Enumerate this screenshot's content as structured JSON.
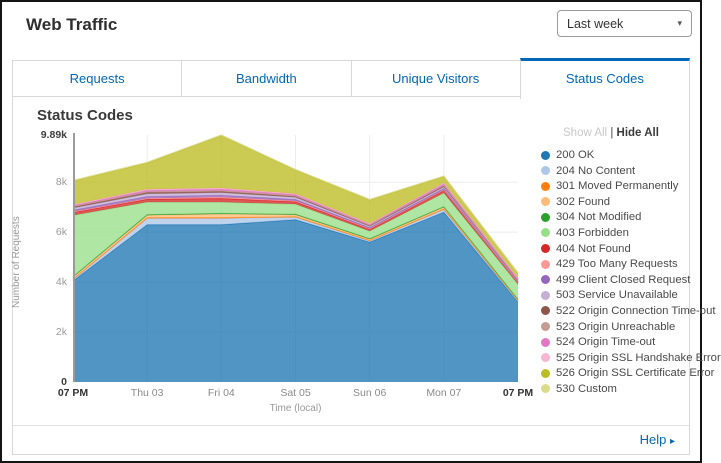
{
  "header": {
    "title": "Web Traffic",
    "period_selector": {
      "value": "Last week",
      "caret": "▾"
    }
  },
  "tabs": [
    {
      "label": "Requests",
      "active": false
    },
    {
      "label": "Bandwidth",
      "active": false
    },
    {
      "label": "Unique Visitors",
      "active": false
    },
    {
      "label": "Status Codes",
      "active": true
    }
  ],
  "panel": {
    "title": "Status Codes"
  },
  "legend_controls": {
    "show_all": "Show All",
    "divider": "|",
    "hide_all": "Hide All"
  },
  "footer": {
    "help_label": "Help",
    "help_arrow": "▸"
  },
  "accent_color": "#0067b5",
  "chart_data": {
    "type": "area",
    "stacked": true,
    "title": "Status Codes",
    "xlabel": "Time (local)",
    "ylabel": "Number of Requests",
    "ylim": [
      0,
      9890
    ],
    "grid": true,
    "legend_position": "right",
    "x": [
      "07 PM",
      "Thu 03",
      "Fri 04",
      "Sat 05",
      "Sun 06",
      "Mon 07",
      "07 PM"
    ],
    "yticks": [
      {
        "value": 0,
        "label": "0",
        "strong": true
      },
      {
        "value": 2000,
        "label": "2k",
        "strong": false
      },
      {
        "value": 4000,
        "label": "4k",
        "strong": false
      },
      {
        "value": 6000,
        "label": "6k",
        "strong": false
      },
      {
        "value": 8000,
        "label": "8k",
        "strong": false
      },
      {
        "value": 9890,
        "label": "9.89k",
        "strong": true
      }
    ],
    "series": [
      {
        "name": "200 OK",
        "color": "#1f77b4",
        "values": [
          4050,
          6300,
          6300,
          6500,
          5600,
          6800,
          3200
        ]
      },
      {
        "name": "204 No Content",
        "color": "#aec7e8",
        "values": [
          50,
          250,
          250,
          100,
          50,
          100,
          50
        ]
      },
      {
        "name": "301 Moved Permanently",
        "color": "#ff7f0e",
        "values": [
          20,
          30,
          30,
          20,
          20,
          30,
          20
        ]
      },
      {
        "name": "302 Found",
        "color": "#ffbb78",
        "values": [
          80,
          100,
          150,
          80,
          50,
          70,
          30
        ]
      },
      {
        "name": "304 Not Modified",
        "color": "#2ca02c",
        "values": [
          20,
          20,
          20,
          20,
          20,
          20,
          10
        ]
      },
      {
        "name": "403 Forbidden",
        "color": "#98df8a",
        "values": [
          2450,
          500,
          450,
          400,
          300,
          550,
          600
        ]
      },
      {
        "name": "404 Not Found",
        "color": "#d62728",
        "values": [
          120,
          120,
          150,
          100,
          80,
          100,
          60
        ]
      },
      {
        "name": "429 Too Many Requests",
        "color": "#ff9896",
        "values": [
          30,
          30,
          50,
          30,
          20,
          30,
          20
        ]
      },
      {
        "name": "499 Client Closed Request",
        "color": "#9467bd",
        "values": [
          60,
          80,
          80,
          60,
          40,
          50,
          30
        ]
      },
      {
        "name": "503 Service Unavailable",
        "color": "#c5b0d5",
        "values": [
          80,
          100,
          100,
          80,
          50,
          60,
          30
        ]
      },
      {
        "name": "522 Origin Connection Time-out",
        "color": "#8c564b",
        "values": [
          40,
          60,
          50,
          40,
          30,
          40,
          20
        ]
      },
      {
        "name": "523 Origin Unreachable",
        "color": "#c49c94",
        "values": [
          30,
          40,
          40,
          30,
          20,
          30,
          20
        ]
      },
      {
        "name": "524 Origin Time-out",
        "color": "#e377c2",
        "values": [
          40,
          50,
          60,
          50,
          40,
          60,
          40
        ]
      },
      {
        "name": "525 Origin SSL Handshake Error",
        "color": "#f7b6d2",
        "values": [
          30,
          40,
          40,
          30,
          20,
          40,
          30
        ]
      },
      {
        "name": "526 Origin SSL Certificate Error",
        "color": "#bcbd22",
        "values": [
          950,
          1050,
          2100,
          950,
          950,
          250,
          200
        ]
      },
      {
        "name": "530 Custom",
        "color": "#dbdb8d",
        "values": [
          20,
          30,
          20,
          20,
          20,
          20,
          10
        ]
      }
    ]
  }
}
